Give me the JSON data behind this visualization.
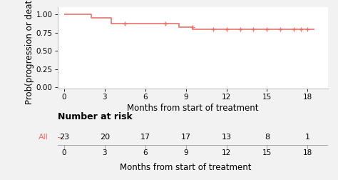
{
  "title": "",
  "xlabel": "Months from start of treatment",
  "ylabel": "Prob(progression or death)",
  "xlim": [
    -0.5,
    19.5
  ],
  "ylim": [
    -0.02,
    1.1
  ],
  "xticks": [
    0,
    3,
    6,
    9,
    12,
    15,
    18
  ],
  "yticks": [
    0.0,
    0.25,
    0.5,
    0.75,
    1.0
  ],
  "line_color": "#e8736a",
  "step_x": [
    0,
    2.0,
    2.0,
    3.5,
    3.5,
    5.5,
    5.5,
    8.5,
    8.5,
    9.5,
    9.5,
    10.5,
    10.5,
    18.5
  ],
  "step_y": [
    1.0,
    1.0,
    0.957,
    0.957,
    0.87,
    0.87,
    0.87,
    0.87,
    0.826,
    0.826,
    0.8,
    0.8,
    0.8,
    0.8
  ],
  "censor_x": [
    4.5,
    7.5,
    9.5,
    11.0,
    12.0,
    13.0,
    14.0,
    15.0,
    16.0,
    17.0,
    17.5,
    18.0
  ],
  "censor_y": [
    0.87,
    0.87,
    0.826,
    0.8,
    0.8,
    0.8,
    0.8,
    0.8,
    0.8,
    0.8,
    0.8,
    0.8
  ],
  "risk_times": [
    0,
    3,
    6,
    9,
    12,
    15,
    18
  ],
  "risk_counts": [
    23,
    20,
    17,
    17,
    13,
    8,
    1
  ],
  "risk_label": "All",
  "risk_label_color": "#e8736a",
  "number_at_risk_title": "Number at risk",
  "background_color": "#f2f2f2",
  "axis_bg": "#ffffff",
  "tick_fontsize": 7.5,
  "label_fontsize": 8.5,
  "risk_fontsize": 8,
  "risk_title_fontsize": 9
}
